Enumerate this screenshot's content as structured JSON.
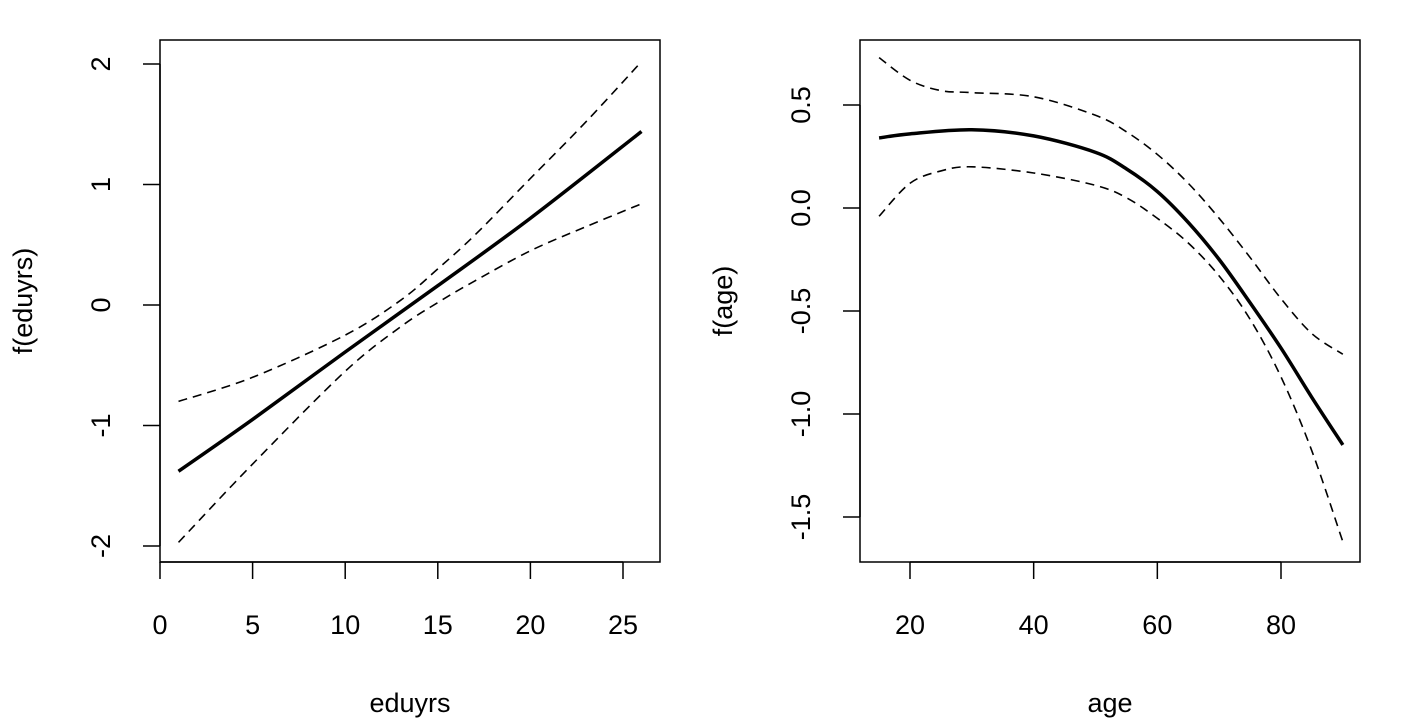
{
  "chart_data": [
    {
      "type": "line",
      "xlabel": "eduyrs",
      "ylabel": "f(eduyrs)",
      "xlim": [
        0,
        27
      ],
      "ylim": [
        -2.1,
        2.2
      ],
      "xticks": [
        0,
        5,
        10,
        15,
        20,
        25
      ],
      "yticks": [
        -2,
        -1,
        0,
        1,
        2
      ],
      "grid": false,
      "series": [
        {
          "style": "solid",
          "x": [
            1,
            5,
            10,
            15,
            20,
            26
          ],
          "y": [
            -1.38,
            -0.95,
            -0.39,
            0.16,
            0.72,
            1.44
          ]
        },
        {
          "style": "dashed",
          "x": [
            1,
            5,
            10,
            13,
            15,
            17,
            20,
            23,
            26
          ],
          "y": [
            -0.8,
            -0.6,
            -0.25,
            0.04,
            0.3,
            0.58,
            1.05,
            1.52,
            2.02
          ]
        },
        {
          "style": "dashed",
          "x": [
            1,
            5,
            10,
            13,
            15,
            17,
            20,
            23,
            26
          ],
          "y": [
            -1.97,
            -1.32,
            -0.55,
            -0.18,
            0.02,
            0.2,
            0.45,
            0.65,
            0.84
          ]
        }
      ]
    },
    {
      "type": "line",
      "xlabel": "age",
      "ylabel": "f(age)",
      "xlim": [
        12,
        93
      ],
      "ylim": [
        -1.7,
        0.82
      ],
      "xticks": [
        20,
        40,
        60,
        80
      ],
      "yticks": [
        -1.5,
        -1.0,
        -0.5,
        0.0,
        0.5
      ],
      "ytick_labels": [
        "-1.5",
        "-1.0",
        "-0.5",
        "0.0",
        "0.5"
      ],
      "grid": false,
      "series": [
        {
          "style": "solid",
          "x": [
            15,
            20,
            30,
            40,
            50,
            55,
            60,
            65,
            70,
            75,
            80,
            85,
            90
          ],
          "y": [
            0.34,
            0.36,
            0.38,
            0.35,
            0.27,
            0.19,
            0.08,
            -0.07,
            -0.25,
            -0.46,
            -0.68,
            -0.92,
            -1.15
          ]
        },
        {
          "style": "dashed",
          "x": [
            15,
            20,
            25,
            30,
            40,
            50,
            55,
            60,
            65,
            70,
            75,
            80,
            85,
            90
          ],
          "y": [
            0.73,
            0.62,
            0.57,
            0.56,
            0.54,
            0.45,
            0.37,
            0.26,
            0.12,
            -0.05,
            -0.24,
            -0.44,
            -0.61,
            -0.71
          ]
        },
        {
          "style": "dashed",
          "x": [
            15,
            20,
            25,
            30,
            40,
            50,
            55,
            60,
            65,
            70,
            75,
            80,
            85,
            90
          ],
          "y": [
            -0.04,
            0.12,
            0.18,
            0.2,
            0.17,
            0.11,
            0.05,
            -0.05,
            -0.17,
            -0.33,
            -0.54,
            -0.82,
            -1.18,
            -1.62
          ]
        }
      ]
    }
  ]
}
